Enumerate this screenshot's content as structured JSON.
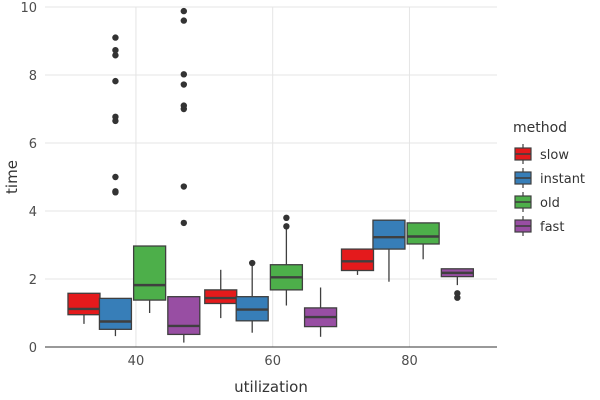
{
  "chart_data": {
    "type": "box",
    "xlabel": "utilization",
    "ylabel": "time",
    "xlim": [
      26.7,
      92.8
    ],
    "ylim": [
      0,
      10
    ],
    "xticks": [
      "40",
      "60",
      "80"
    ],
    "yticks": [
      "0",
      "2",
      "4",
      "6",
      "8",
      "10"
    ],
    "grid": true,
    "legend": {
      "title": "method",
      "placement": "right"
    },
    "series": [
      {
        "name": "slow",
        "color": "#e41a1c",
        "boxes": [
          {
            "x": 32.4,
            "q1": 0.95,
            "median": 1.12,
            "q3": 1.58,
            "lo": 0.68,
            "hi": 1.58,
            "outliers": []
          },
          {
            "x": 52.4,
            "q1": 1.28,
            "median": 1.44,
            "q3": 1.68,
            "lo": 0.85,
            "hi": 2.27,
            "outliers": []
          },
          {
            "x": 72.4,
            "q1": 2.25,
            "median": 2.52,
            "q3": 2.88,
            "lo": 2.12,
            "hi": 2.88,
            "outliers": []
          }
        ]
      },
      {
        "name": "instant",
        "color": "#377eb8",
        "boxes": [
          {
            "x": 37.0,
            "q1": 0.52,
            "median": 0.75,
            "q3": 1.43,
            "lo": 0.32,
            "hi": 1.43,
            "outliers": [
              4.55,
              4.58,
              5.0,
              6.65,
              6.77,
              7.82,
              8.58,
              8.73,
              9.1
            ]
          },
          {
            "x": 57.0,
            "q1": 0.77,
            "median": 1.1,
            "q3": 1.48,
            "lo": 0.42,
            "hi": 2.47,
            "outliers": [
              2.47
            ]
          },
          {
            "x": 77.0,
            "q1": 2.88,
            "median": 3.23,
            "q3": 3.73,
            "lo": 1.92,
            "hi": 3.73,
            "outliers": []
          }
        ]
      },
      {
        "name": "old",
        "color": "#4daf4a",
        "boxes": [
          {
            "x": 42.0,
            "q1": 1.38,
            "median": 1.82,
            "q3": 2.97,
            "lo": 1.0,
            "hi": 2.97,
            "outliers": []
          },
          {
            "x": 62.0,
            "q1": 1.68,
            "median": 2.05,
            "q3": 2.42,
            "lo": 1.22,
            "hi": 3.48,
            "outliers": [
              3.55,
              3.8
            ]
          },
          {
            "x": 82.0,
            "q1": 3.03,
            "median": 3.25,
            "q3": 3.65,
            "lo": 2.58,
            "hi": 3.65,
            "outliers": []
          }
        ]
      },
      {
        "name": "fast",
        "color": "#984ea3",
        "boxes": [
          {
            "x": 47.0,
            "q1": 0.37,
            "median": 0.62,
            "q3": 1.48,
            "lo": 0.13,
            "hi": 1.48,
            "outliers": [
              3.65,
              4.72,
              7.0,
              7.1,
              7.72,
              8.02,
              9.6,
              9.88
            ]
          },
          {
            "x": 67.0,
            "q1": 0.6,
            "median": 0.88,
            "q3": 1.15,
            "lo": 0.3,
            "hi": 1.75,
            "outliers": []
          },
          {
            "x": 87.0,
            "q1": 2.07,
            "median": 2.18,
            "q3": 2.3,
            "lo": 1.82,
            "hi": 2.3,
            "outliers": [
              1.45,
              1.58
            ]
          }
        ]
      }
    ]
  }
}
